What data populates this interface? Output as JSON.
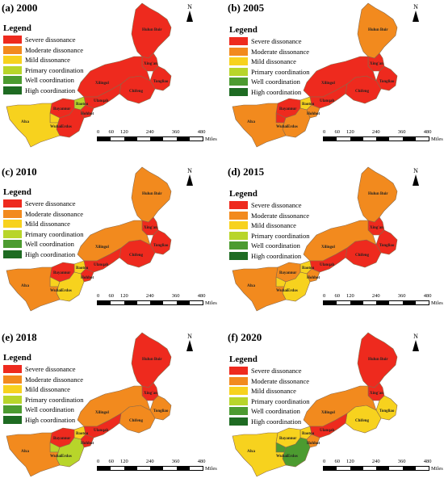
{
  "legend": {
    "title": "Legend",
    "items": [
      {
        "label": "Severe dissonance",
        "color": "#ee2a1e"
      },
      {
        "label": "Moderate dissonance",
        "color": "#f28a1e"
      },
      {
        "label": "Mild dissonance",
        "color": "#f7d21e"
      },
      {
        "label": "Primary coordination",
        "color": "#b8d52a"
      },
      {
        "label": "Well coordination",
        "color": "#4c9b30"
      },
      {
        "label": "High coordination",
        "color": "#1e6b22"
      }
    ]
  },
  "north_label": "N",
  "scale": {
    "ticks": [
      "0",
      "60",
      "120",
      "240",
      "360",
      "480"
    ],
    "unit": "Miles"
  },
  "city_labels": [
    "Hulun Buir",
    "Xing'an",
    "Tongliao",
    "Chifeng",
    "Xilingol",
    "Ulanqab",
    "Baotou",
    "Hohhot",
    "Bayannur",
    "Wuhai",
    "Erdos",
    "Alxa"
  ],
  "panels": [
    {
      "title": "(a) 2000",
      "levels": {
        "Hulun Buir": 0,
        "Xing'an": 0,
        "Tongliao": 0,
        "Chifeng": 0,
        "Xilingol": 0,
        "Ulanqab": 0,
        "Baotou": 3,
        "Hohhot": 0,
        "Bayannur": 0,
        "Wuhai": 2,
        "Erdos": 0,
        "Alxa": 2
      }
    },
    {
      "title": "(b) 2005",
      "levels": {
        "Hulun Buir": 1,
        "Xing'an": 0,
        "Tongliao": 0,
        "Chifeng": 0,
        "Xilingol": 0,
        "Ulanqab": 0,
        "Baotou": 2,
        "Hohhot": 1,
        "Bayannur": 0,
        "Wuhai": 0,
        "Erdos": 1,
        "Alxa": 1
      }
    },
    {
      "title": "(c) 2010",
      "levels": {
        "Hulun Buir": 1,
        "Xing'an": 0,
        "Tongliao": 0,
        "Chifeng": 0,
        "Xilingol": 1,
        "Ulanqab": 0,
        "Baotou": 2,
        "Hohhot": 0,
        "Bayannur": 0,
        "Wuhai": 2,
        "Erdos": 2,
        "Alxa": 1
      }
    },
    {
      "title": "(d) 2015",
      "levels": {
        "Hulun Buir": 1,
        "Xing'an": 0,
        "Tongliao": 0,
        "Chifeng": 0,
        "Xilingol": 1,
        "Ulanqab": 0,
        "Baotou": 2,
        "Hohhot": 1,
        "Bayannur": 1,
        "Wuhai": 2,
        "Erdos": 2,
        "Alxa": 1
      }
    },
    {
      "title": "(e) 2018",
      "levels": {
        "Hulun Buir": 0,
        "Xing'an": 0,
        "Tongliao": 1,
        "Chifeng": 1,
        "Xilingol": 1,
        "Ulanqab": 0,
        "Baotou": 2,
        "Hohhot": 0,
        "Bayannur": 0,
        "Wuhai": 3,
        "Erdos": 3,
        "Alxa": 1
      }
    },
    {
      "title": "(f) 2020",
      "levels": {
        "Hulun Buir": 0,
        "Xing'an": 0,
        "Tongliao": 2,
        "Chifeng": 2,
        "Xilingol": 1,
        "Ulanqab": 0,
        "Baotou": 2,
        "Hohhot": 1,
        "Bayannur": 2,
        "Wuhai": 4,
        "Erdos": 4,
        "Alxa": 2
      }
    }
  ]
}
